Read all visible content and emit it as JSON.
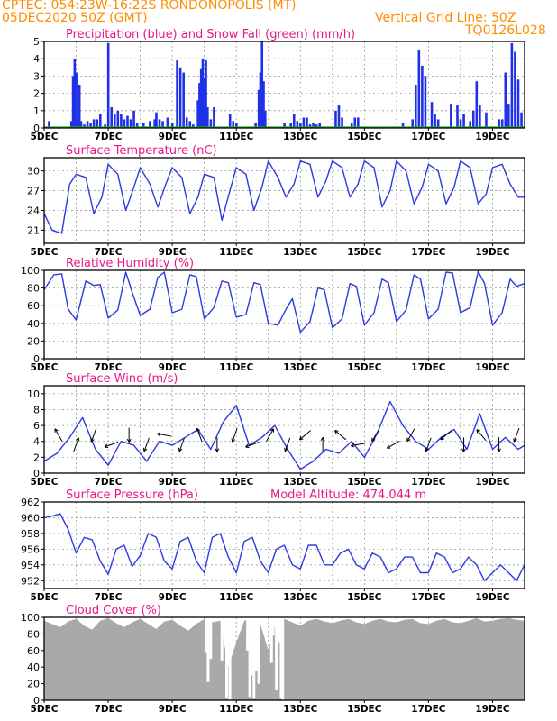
{
  "header": {
    "line1": "CPTEC:   054:23W-16:22S   RONDONOPOLIS (MT)",
    "line2": "05DEC2020 50Z (GMT)",
    "right1": "Vertical Grid Line: 50Z",
    "right2": "TQ0126L028"
  },
  "colors": {
    "header": "#ff8c00",
    "title": "#e8168a",
    "line": "#2b3be0",
    "bar": "#1e30e8",
    "snow": "#22aa22",
    "cloud": "#a9a9a9",
    "grid": "#9a9a9a"
  },
  "chart_data": [
    {
      "type": "bar",
      "title": "Precipitation (blue) and Snow Fall (green) (mm/h)",
      "xlim": [
        5,
        20
      ],
      "ylim": [
        0,
        5
      ],
      "yticks": [
        0,
        1,
        2,
        3,
        4,
        5
      ],
      "xticks": [
        "5DEC",
        "7DEC",
        "9DEC",
        "11DEC",
        "13DEC",
        "15DEC",
        "17DEC",
        "19DEC"
      ],
      "series": [
        {
          "name": "Precipitation",
          "x": [
            5.15,
            5.85,
            5.9,
            5.95,
            6.0,
            6.05,
            6.1,
            6.15,
            6.25,
            6.35,
            6.45,
            6.55,
            6.65,
            6.75,
            6.9,
            7.0,
            7.1,
            7.2,
            7.3,
            7.4,
            7.5,
            7.6,
            7.7,
            7.8,
            7.9,
            8.1,
            8.3,
            8.45,
            8.5,
            8.6,
            8.7,
            8.85,
            9.0,
            9.15,
            9.25,
            9.35,
            9.45,
            9.55,
            9.65,
            9.8,
            9.85,
            9.9,
            9.95,
            10.0,
            10.05,
            10.1,
            10.2,
            10.3,
            10.8,
            10.9,
            11.0,
            11.6,
            11.7,
            11.75,
            11.8,
            11.85,
            11.9,
            12.5,
            12.7,
            12.8,
            12.9,
            13.0,
            13.1,
            13.2,
            13.3,
            13.4,
            13.5,
            13.6,
            14.1,
            14.2,
            14.3,
            14.6,
            14.7,
            14.8,
            16.2,
            16.5,
            16.6,
            16.7,
            16.8,
            16.9,
            17.1,
            17.2,
            17.3,
            17.7,
            17.9,
            18.0,
            18.1,
            18.3,
            18.4,
            18.5,
            18.6,
            18.8,
            19.2,
            19.3,
            19.4,
            19.5,
            19.6,
            19.7,
            19.8,
            19.9
          ],
          "values": [
            0.4,
            0.4,
            3.0,
            4.0,
            3.2,
            0.3,
            2.5,
            0.4,
            0.2,
            0.4,
            0.3,
            0.5,
            0.5,
            0.8,
            0.2,
            4.9,
            1.2,
            0.8,
            1.0,
            0.8,
            0.5,
            0.7,
            0.5,
            1.0,
            0.3,
            0.3,
            0.4,
            0.5,
            0.9,
            0.5,
            0.4,
            0.6,
            0.3,
            3.9,
            3.5,
            3.2,
            0.6,
            0.4,
            0.2,
            1.6,
            2.6,
            3.4,
            4.0,
            2.9,
            3.9,
            1.2,
            0.5,
            1.2,
            0.8,
            0.4,
            0.3,
            0.3,
            2.2,
            3.2,
            5.0,
            2.7,
            1.0,
            0.3,
            0.3,
            0.8,
            0.4,
            0.3,
            0.6,
            0.6,
            0.2,
            0.3,
            0.2,
            0.3,
            1.0,
            1.3,
            0.6,
            0.3,
            0.6,
            0.6,
            0.3,
            0.5,
            2.5,
            4.5,
            3.6,
            3.0,
            1.5,
            0.8,
            0.5,
            1.4,
            1.3,
            0.5,
            0.8,
            0.4,
            1.0,
            2.7,
            1.3,
            0.9,
            0.5,
            0.5,
            3.2,
            1.4,
            4.9,
            4.4,
            2.8,
            0.9
          ]
        }
      ]
    },
    {
      "type": "line",
      "title": "Surface Temperature (nC)",
      "xlim": [
        5,
        20
      ],
      "ylim": [
        19,
        32
      ],
      "yticks": [
        21,
        24,
        27,
        30
      ],
      "xticks": [
        "5DEC",
        "7DEC",
        "9DEC",
        "11DEC",
        "13DEC",
        "15DEC",
        "17DEC",
        "19DEC"
      ],
      "series": [
        {
          "name": "Temperature",
          "x": [
            5.0,
            5.25,
            5.55,
            5.8,
            6.0,
            6.3,
            6.55,
            6.8,
            7.0,
            7.3,
            7.55,
            7.8,
            8.0,
            8.3,
            8.55,
            8.8,
            9.0,
            9.3,
            9.55,
            9.8,
            10.0,
            10.3,
            10.55,
            10.8,
            11.0,
            11.3,
            11.55,
            11.8,
            12.0,
            12.3,
            12.55,
            12.8,
            13.0,
            13.3,
            13.55,
            13.8,
            14.0,
            14.3,
            14.55,
            14.8,
            15.0,
            15.3,
            15.55,
            15.8,
            16.0,
            16.3,
            16.55,
            16.8,
            17.0,
            17.3,
            17.55,
            17.8,
            18.0,
            18.3,
            18.55,
            18.8,
            19.0,
            19.3,
            19.55,
            19.8,
            20.0
          ],
          "values": [
            23.5,
            21.0,
            20.5,
            28.0,
            29.5,
            29.0,
            23.5,
            26.0,
            31.0,
            29.5,
            24.0,
            27.5,
            30.5,
            28.0,
            24.5,
            28.0,
            30.5,
            29.0,
            23.5,
            26.0,
            29.5,
            29.0,
            22.5,
            27.0,
            30.5,
            29.5,
            24.0,
            27.5,
            31.5,
            29.0,
            26.0,
            28.0,
            31.5,
            31.0,
            26.0,
            28.5,
            31.5,
            30.5,
            26.0,
            28.0,
            31.5,
            30.5,
            24.5,
            27.0,
            31.5,
            30.0,
            25.0,
            27.5,
            31.0,
            30.0,
            25.0,
            27.5,
            31.5,
            30.5,
            25.0,
            26.5,
            30.5,
            31.0,
            28.0,
            26.0,
            26.0
          ]
        }
      ]
    },
    {
      "type": "line",
      "title": "Relative Humidity (%)",
      "xlim": [
        5,
        20
      ],
      "ylim": [
        0,
        100
      ],
      "yticks": [
        0,
        20,
        40,
        60,
        80,
        100
      ],
      "xticks": [
        "5DEC",
        "7DEC",
        "9DEC",
        "11DEC",
        "13DEC",
        "15DEC",
        "17DEC",
        "19DEC"
      ],
      "series": [
        {
          "name": "Humidity",
          "x": [
            5.0,
            5.3,
            5.55,
            5.75,
            6.0,
            6.3,
            6.55,
            6.75,
            7.0,
            7.3,
            7.55,
            7.75,
            8.0,
            8.3,
            8.55,
            8.75,
            9.0,
            9.3,
            9.55,
            9.75,
            10.0,
            10.3,
            10.55,
            10.75,
            11.0,
            11.3,
            11.55,
            11.75,
            12.0,
            12.3,
            12.55,
            12.75,
            13.0,
            13.3,
            13.55,
            13.75,
            14.0,
            14.3,
            14.55,
            14.75,
            15.0,
            15.3,
            15.55,
            15.75,
            16.0,
            16.3,
            16.55,
            16.75,
            17.0,
            17.3,
            17.55,
            17.75,
            18.0,
            18.3,
            18.55,
            18.75,
            19.0,
            19.3,
            19.55,
            19.75,
            20.0
          ],
          "values": [
            78,
            95,
            96,
            56,
            44,
            88,
            83,
            84,
            46,
            55,
            98,
            75,
            49,
            56,
            92,
            98,
            52,
            56,
            95,
            93,
            45,
            58,
            88,
            86,
            47,
            50,
            86,
            84,
            40,
            38,
            56,
            68,
            30,
            42,
            80,
            78,
            35,
            45,
            85,
            82,
            38,
            52,
            90,
            86,
            42,
            55,
            95,
            90,
            45,
            56,
            98,
            97,
            52,
            58,
            99,
            85,
            38,
            52,
            90,
            82,
            85
          ]
        }
      ]
    },
    {
      "type": "line",
      "title": "Surface Wind (m/s)",
      "xlim": [
        5,
        20
      ],
      "ylim": [
        0,
        11
      ],
      "yticks": [
        0,
        2,
        4,
        6,
        8,
        10
      ],
      "xticks": [
        "5DEC",
        "7DEC",
        "9DEC",
        "11DEC",
        "13DEC",
        "15DEC",
        "17DEC",
        "19DEC"
      ],
      "series": [
        {
          "name": "Wind speed",
          "x": [
            5.0,
            5.4,
            5.8,
            6.2,
            6.6,
            7.0,
            7.4,
            7.8,
            8.2,
            8.6,
            9.0,
            9.4,
            9.8,
            10.2,
            10.6,
            11.0,
            11.4,
            11.8,
            12.2,
            12.6,
            13.0,
            13.4,
            13.8,
            14.2,
            14.6,
            15.0,
            15.4,
            15.8,
            16.2,
            16.6,
            17.0,
            17.4,
            17.8,
            18.2,
            18.6,
            19.0,
            19.4,
            19.8,
            20.0
          ],
          "values": [
            1.5,
            2.5,
            4.5,
            7.0,
            3.0,
            1.0,
            4.0,
            3.5,
            1.5,
            4.0,
            3.5,
            4.5,
            5.5,
            3.0,
            6.5,
            8.5,
            3.5,
            4.5,
            6.0,
            3.0,
            0.5,
            1.5,
            3.0,
            2.5,
            4.0,
            2.0,
            5.0,
            9.0,
            6.0,
            4.0,
            3.0,
            4.5,
            5.5,
            3.0,
            7.5,
            3.0,
            4.5,
            3.0,
            3.5
          ]
        }
      ],
      "wind_directions_deg": [
        330,
        20,
        200,
        250,
        180,
        200,
        280,
        200,
        340,
        180,
        200,
        250,
        30,
        200,
        230,
        0,
        310,
        260,
        210,
        240,
        210,
        200,
        230,
        180,
        320,
        180,
        200
      ]
    },
    {
      "type": "line",
      "title": "Surface Pressure (hPa)",
      "annotation": "Model Altitude: 474.044 m",
      "xlim": [
        5,
        20
      ],
      "ylim": [
        951,
        962
      ],
      "yticks": [
        952,
        954,
        956,
        958,
        960,
        962
      ],
      "xticks": [
        "5DEC",
        "7DEC",
        "9DEC",
        "11DEC",
        "13DEC",
        "15DEC",
        "17DEC",
        "19DEC"
      ],
      "series": [
        {
          "name": "Pressure",
          "x": [
            5.0,
            5.25,
            5.5,
            5.75,
            6.0,
            6.25,
            6.5,
            6.75,
            7.0,
            7.25,
            7.5,
            7.75,
            8.0,
            8.25,
            8.5,
            8.75,
            9.0,
            9.25,
            9.5,
            9.75,
            10.0,
            10.25,
            10.5,
            10.75,
            11.0,
            11.25,
            11.5,
            11.75,
            12.0,
            12.25,
            12.5,
            12.75,
            13.0,
            13.25,
            13.5,
            13.75,
            14.0,
            14.25,
            14.5,
            14.75,
            15.0,
            15.25,
            15.5,
            15.75,
            16.0,
            16.25,
            16.5,
            16.75,
            17.0,
            17.25,
            17.5,
            17.75,
            18.0,
            18.25,
            18.5,
            18.75,
            19.0,
            19.25,
            19.5,
            19.75,
            20.0
          ],
          "values": [
            960.0,
            960.2,
            960.5,
            958.5,
            955.5,
            957.5,
            957.2,
            954.5,
            952.8,
            956.0,
            956.5,
            953.8,
            955.2,
            958.0,
            957.5,
            954.5,
            953.5,
            957.0,
            957.5,
            954.5,
            953.0,
            957.5,
            958.0,
            955.0,
            953.0,
            957.0,
            957.5,
            954.5,
            953.0,
            956.0,
            956.5,
            954.0,
            953.5,
            956.5,
            956.5,
            954.0,
            954.0,
            955.5,
            956.0,
            954.0,
            953.5,
            955.5,
            955.0,
            953.0,
            953.5,
            955.0,
            955.0,
            953.0,
            953.0,
            955.5,
            955.0,
            953.0,
            953.5,
            955.0,
            954.0,
            952.0,
            953.0,
            954.0,
            953.0,
            952.0,
            954.0
          ]
        }
      ]
    },
    {
      "type": "area",
      "title": "Cloud Cover (%)",
      "xlim": [
        5,
        20
      ],
      "ylim": [
        0,
        100
      ],
      "yticks": [
        0,
        20,
        40,
        60,
        80,
        100
      ],
      "xticks": [
        "5DEC",
        "7DEC",
        "9DEC",
        "11DEC",
        "13DEC",
        "15DEC",
        "17DEC",
        "19DEC"
      ],
      "series": [
        {
          "name": "Cloud Cover",
          "x": [
            5.0,
            5.25,
            5.5,
            5.75,
            6.0,
            6.25,
            6.5,
            6.75,
            7.0,
            7.25,
            7.5,
            7.75,
            8.0,
            8.25,
            8.5,
            8.75,
            9.0,
            9.25,
            9.5,
            9.75,
            10.0,
            10.25,
            10.5,
            10.75,
            11.0,
            11.25,
            11.5,
            11.75,
            12.0,
            12.25,
            12.5,
            12.75,
            13.0,
            13.25,
            13.5,
            13.75,
            14.0,
            14.25,
            14.5,
            14.75,
            15.0,
            15.25,
            15.5,
            15.75,
            16.0,
            16.25,
            16.5,
            16.75,
            17.0,
            17.25,
            17.5,
            17.75,
            18.0,
            18.25,
            18.5,
            18.75,
            19.0,
            19.25,
            19.5,
            19.75,
            20.0
          ],
          "values": [
            96,
            92,
            88,
            95,
            98,
            90,
            85,
            96,
            99,
            93,
            88,
            94,
            98,
            92,
            86,
            95,
            97,
            90,
            84,
            92,
            98,
            94,
            96,
            40,
            70,
            96,
            99,
            92,
            60,
            96,
            98,
            94,
            90,
            96,
            98,
            95,
            93,
            96,
            98,
            94,
            92,
            96,
            98,
            95,
            94,
            97,
            98,
            93,
            92,
            96,
            98,
            94,
            93,
            96,
            99,
            95,
            96,
            98,
            99,
            97,
            96
          ]
        },
        {
          "name": "Clear gaps",
          "x": [
            10.05,
            10.12,
            10.2,
            10.55,
            10.62,
            10.7,
            10.8,
            11.35,
            11.42,
            11.47,
            11.55,
            11.62,
            11.7,
            12.1,
            12.15,
            12.25,
            12.32,
            12.4,
            12.45
          ],
          "values": [
            58,
            22,
            50,
            48,
            75,
            2,
            0,
            60,
            4,
            30,
            2,
            35,
            20,
            45,
            78,
            12,
            70,
            2,
            0
          ]
        }
      ]
    }
  ]
}
